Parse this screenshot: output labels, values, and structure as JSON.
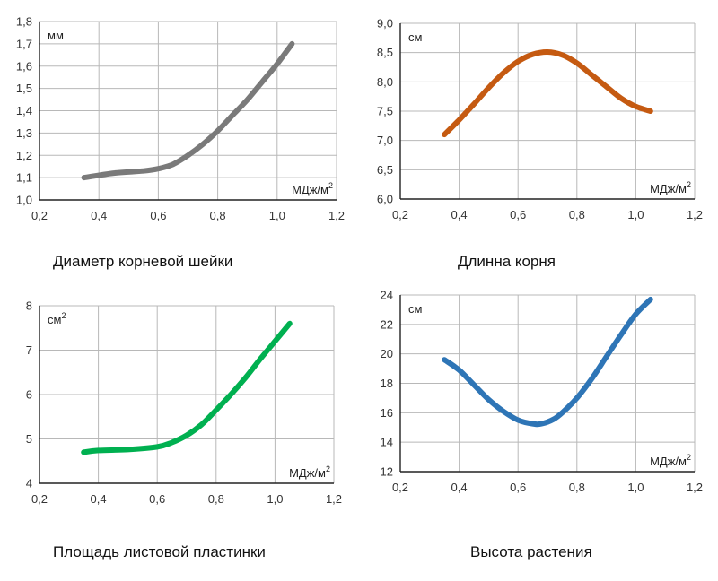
{
  "chart_data": [
    {
      "type": "line",
      "title": "Диаметр корневой шейки",
      "ylabel": "мм",
      "xlabel": "МДж/м",
      "xlabel_sup": "2",
      "color": "#7a7a7a",
      "xlim": [
        0.2,
        1.2
      ],
      "ylim": [
        1.0,
        1.8
      ],
      "xticks": [
        "0,2",
        "0,4",
        "0,6",
        "0,8",
        "1,0",
        "1,2"
      ],
      "yticks": [
        "1,0",
        "1,1",
        "1,2",
        "1,3",
        "1,4",
        "1,5",
        "1,6",
        "1,7",
        "1,8"
      ],
      "x": [
        0.35,
        0.45,
        0.55,
        0.6,
        0.65,
        0.7,
        0.75,
        0.8,
        0.85,
        0.9,
        0.95,
        1.0,
        1.05
      ],
      "y": [
        1.1,
        1.12,
        1.13,
        1.14,
        1.16,
        1.2,
        1.25,
        1.31,
        1.38,
        1.45,
        1.53,
        1.61,
        1.7
      ]
    },
    {
      "type": "line",
      "title": "Длинна корня",
      "ylabel": "см",
      "xlabel": "МДж/м",
      "xlabel_sup": "2",
      "color": "#c55a11",
      "xlim": [
        0.2,
        1.2
      ],
      "ylim": [
        6.0,
        9.0
      ],
      "xticks": [
        "0,2",
        "0,4",
        "0,6",
        "0,8",
        "1,0",
        "1,2"
      ],
      "yticks": [
        "6,0",
        "6,5",
        "7,0",
        "7,5",
        "8,0",
        "8,5",
        "9,0"
      ],
      "x": [
        0.35,
        0.4,
        0.45,
        0.5,
        0.55,
        0.6,
        0.65,
        0.7,
        0.75,
        0.8,
        0.85,
        0.9,
        0.95,
        1.0,
        1.05
      ],
      "y": [
        7.1,
        7.35,
        7.62,
        7.9,
        8.15,
        8.35,
        8.47,
        8.51,
        8.46,
        8.32,
        8.12,
        7.92,
        7.72,
        7.58,
        7.5
      ]
    },
    {
      "type": "line",
      "title": "Площадь листовой пластинки",
      "ylabel": "см",
      "ylabel_sup": "2",
      "xlabel": "МДж/м",
      "xlabel_sup": "2",
      "color": "#00b050",
      "xlim": [
        0.2,
        1.2
      ],
      "ylim": [
        4,
        8
      ],
      "xticks": [
        "0,2",
        "0,4",
        "0,6",
        "0,8",
        "1,0",
        "1,2"
      ],
      "yticks": [
        "4",
        "5",
        "6",
        "7",
        "8"
      ],
      "x": [
        0.35,
        0.4,
        0.5,
        0.6,
        0.65,
        0.7,
        0.75,
        0.8,
        0.85,
        0.9,
        0.95,
        1.0,
        1.05
      ],
      "y": [
        4.7,
        4.74,
        4.76,
        4.82,
        4.92,
        5.08,
        5.32,
        5.65,
        6.0,
        6.38,
        6.8,
        7.2,
        7.6
      ]
    },
    {
      "type": "line",
      "title": "Высота растения",
      "ylabel": "см",
      "xlabel": "МДж/м",
      "xlabel_sup": "2",
      "color": "#2e75b6",
      "xlim": [
        0.2,
        1.2
      ],
      "ylim": [
        12,
        24
      ],
      "xticks": [
        "0,2",
        "0,4",
        "0,6",
        "0,8",
        "1,0",
        "1,2"
      ],
      "yticks": [
        "12",
        "14",
        "16",
        "18",
        "20",
        "22",
        "24"
      ],
      "x": [
        0.35,
        0.4,
        0.45,
        0.5,
        0.55,
        0.6,
        0.65,
        0.68,
        0.72,
        0.75,
        0.8,
        0.85,
        0.9,
        0.95,
        1.0,
        1.05
      ],
      "y": [
        19.6,
        18.9,
        17.9,
        16.9,
        16.1,
        15.5,
        15.25,
        15.25,
        15.55,
        16.0,
        17.0,
        18.3,
        19.8,
        21.3,
        22.7,
        23.7
      ]
    }
  ]
}
